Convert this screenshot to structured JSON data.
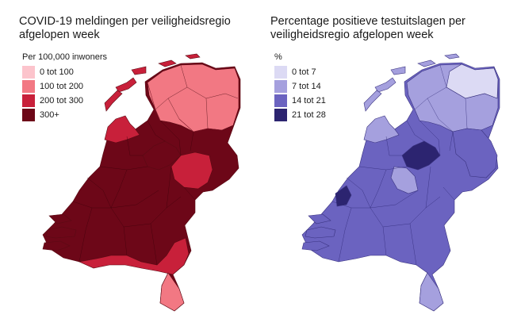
{
  "left_panel": {
    "title_line1": "COVID-19 meldingen per veiligheidsregio",
    "title_line2": "afgelopen week",
    "legend_title": "Per 100,000 inwoners",
    "legend": [
      {
        "label": "0 tot 100",
        "color": "#fcc4cc"
      },
      {
        "label": "100 tot 200",
        "color": "#f27883"
      },
      {
        "label": "200 tot 300",
        "color": "#c8203a"
      },
      {
        "label": "300+",
        "color": "#6d0718"
      }
    ]
  },
  "right_panel": {
    "title_line1": "Percentage positieve testuitslagen per",
    "title_line2": "veiligheidsregio afgelopen week",
    "legend_title": "%",
    "legend": [
      {
        "label": "0 tot 7",
        "color": "#dcdaf4"
      },
      {
        "label": "7 tot 14",
        "color": "#a5a0de"
      },
      {
        "label": "14 tot 21",
        "color": "#6b63c0"
      },
      {
        "label": "21 tot 28",
        "color": "#2c2470"
      }
    ]
  }
}
